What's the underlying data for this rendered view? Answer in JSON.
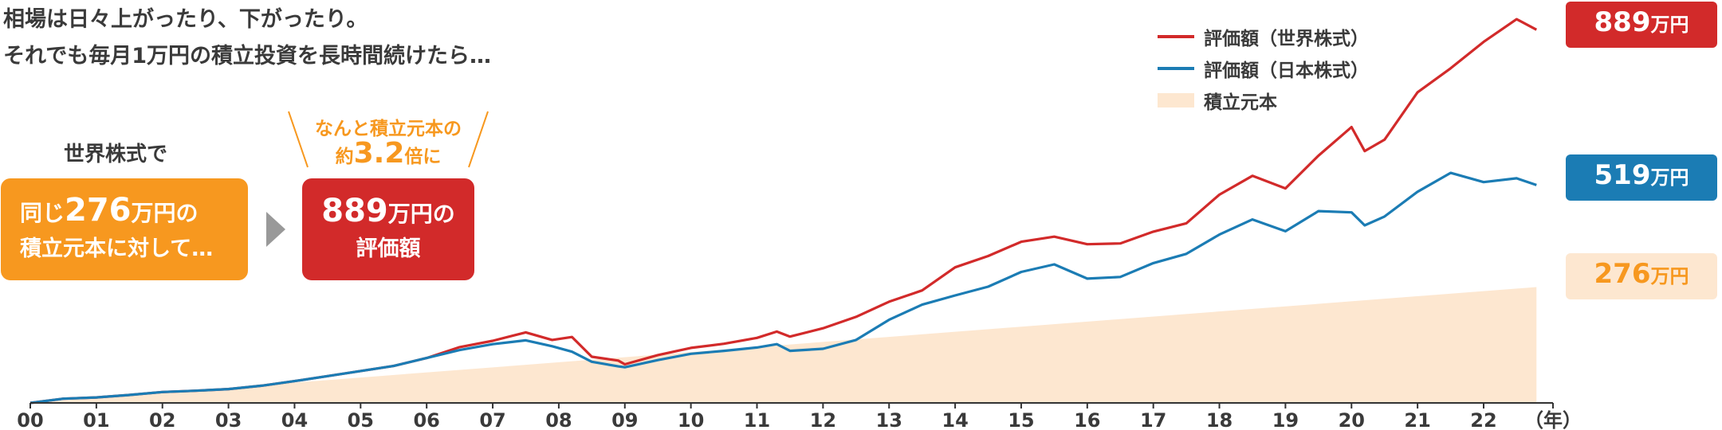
{
  "intro": {
    "line1": "相場は日々上がったり、下がったり。",
    "line2": "それでも毎月1万円の積立投資を長時間続けたら…"
  },
  "world_heading": "世界株式で",
  "orange_box": {
    "pre": "同じ",
    "num": "276",
    "post": "万円の",
    "line2": "積立元本に対して…"
  },
  "red_box": {
    "num": "889",
    "post": "万円の",
    "line2": "評価額"
  },
  "callout": {
    "line1": "なんと積立元本の",
    "pre": "約",
    "num": "3.2",
    "post": "倍に"
  },
  "legend": {
    "world": "評価額（世界株式）",
    "japan": "評価額（日本株式）",
    "principal": "積立元本"
  },
  "end_labels": {
    "world": {
      "num": "889",
      "unit": "万円"
    },
    "japan": {
      "num": "519",
      "unit": "万円"
    },
    "principal": {
      "num": "276",
      "unit": "万円"
    }
  },
  "colors": {
    "world": "#d22a2a",
    "japan": "#1b7cb4",
    "principal_fill": "#fde7d0",
    "accent": "#f7981f"
  },
  "chart_data": {
    "type": "line",
    "x_tick_labels": [
      "00",
      "01",
      "02",
      "03",
      "04",
      "05",
      "06",
      "07",
      "08",
      "09",
      "10",
      "11",
      "12",
      "13",
      "14",
      "15",
      "16",
      "17",
      "18",
      "19",
      "20",
      "21",
      "22"
    ],
    "x_unit_label": "（年）",
    "xlim": [
      0,
      23.05
    ],
    "ylim": [
      0,
      956
    ],
    "series": [
      {
        "name": "評価額（世界株式）",
        "key": "world",
        "points": [
          [
            0,
            0
          ],
          [
            0.5,
            10
          ],
          [
            1,
            13
          ],
          [
            1.5,
            19
          ],
          [
            2,
            26
          ],
          [
            2.5,
            29
          ],
          [
            3,
            33
          ],
          [
            3.5,
            41
          ],
          [
            4,
            52
          ],
          [
            4.5,
            64
          ],
          [
            5,
            76
          ],
          [
            5.5,
            88
          ],
          [
            6,
            107
          ],
          [
            6.5,
            133
          ],
          [
            7,
            148
          ],
          [
            7.5,
            168
          ],
          [
            7.9,
            150
          ],
          [
            8.2,
            157
          ],
          [
            8.5,
            110
          ],
          [
            8.9,
            101
          ],
          [
            9,
            92
          ],
          [
            9.5,
            114
          ],
          [
            10,
            131
          ],
          [
            10.5,
            141
          ],
          [
            11,
            155
          ],
          [
            11.3,
            170
          ],
          [
            11.5,
            158
          ],
          [
            12,
            178
          ],
          [
            12.5,
            205
          ],
          [
            13,
            241
          ],
          [
            13.5,
            268
          ],
          [
            14,
            323
          ],
          [
            14.5,
            350
          ],
          [
            15,
            384
          ],
          [
            15.5,
            396
          ],
          [
            16,
            378
          ],
          [
            16.5,
            380
          ],
          [
            17,
            408
          ],
          [
            17.5,
            428
          ],
          [
            18,
            496
          ],
          [
            18.5,
            541
          ],
          [
            19,
            511
          ],
          [
            19.5,
            589
          ],
          [
            20,
            657
          ],
          [
            20.2,
            600
          ],
          [
            20.5,
            627
          ],
          [
            21,
            740
          ],
          [
            21.5,
            797
          ],
          [
            22,
            860
          ],
          [
            22.5,
            914
          ],
          [
            22.8,
            889
          ]
        ]
      },
      {
        "name": "評価額（日本株式）",
        "key": "japan",
        "points": [
          [
            0,
            0
          ],
          [
            0.5,
            10
          ],
          [
            1,
            13
          ],
          [
            1.5,
            19
          ],
          [
            2,
            26
          ],
          [
            2.5,
            29
          ],
          [
            3,
            33
          ],
          [
            3.5,
            41
          ],
          [
            4,
            52
          ],
          [
            4.5,
            64
          ],
          [
            5,
            76
          ],
          [
            5.5,
            88
          ],
          [
            6,
            107
          ],
          [
            6.5,
            126
          ],
          [
            7,
            140
          ],
          [
            7.5,
            149
          ],
          [
            7.9,
            135
          ],
          [
            8.2,
            122
          ],
          [
            8.5,
            98
          ],
          [
            8.9,
            87
          ],
          [
            9,
            85
          ],
          [
            9.5,
            102
          ],
          [
            10,
            117
          ],
          [
            10.5,
            124
          ],
          [
            11,
            132
          ],
          [
            11.3,
            140
          ],
          [
            11.5,
            124
          ],
          [
            12,
            129
          ],
          [
            12.5,
            150
          ],
          [
            13,
            198
          ],
          [
            13.5,
            234
          ],
          [
            14,
            256
          ],
          [
            14.5,
            277
          ],
          [
            15,
            312
          ],
          [
            15.5,
            330
          ],
          [
            16,
            296
          ],
          [
            16.5,
            300
          ],
          [
            17,
            333
          ],
          [
            17.5,
            355
          ],
          [
            18,
            401
          ],
          [
            18.5,
            437
          ],
          [
            19,
            409
          ],
          [
            19.5,
            457
          ],
          [
            20,
            454
          ],
          [
            20.2,
            423
          ],
          [
            20.5,
            444
          ],
          [
            21,
            503
          ],
          [
            21.5,
            548
          ],
          [
            22,
            526
          ],
          [
            22.5,
            535
          ],
          [
            22.8,
            519
          ]
        ]
      },
      {
        "name": "積立元本",
        "key": "principal",
        "type": "area",
        "points": [
          [
            0,
            0
          ],
          [
            22.8,
            276
          ]
        ]
      }
    ]
  }
}
